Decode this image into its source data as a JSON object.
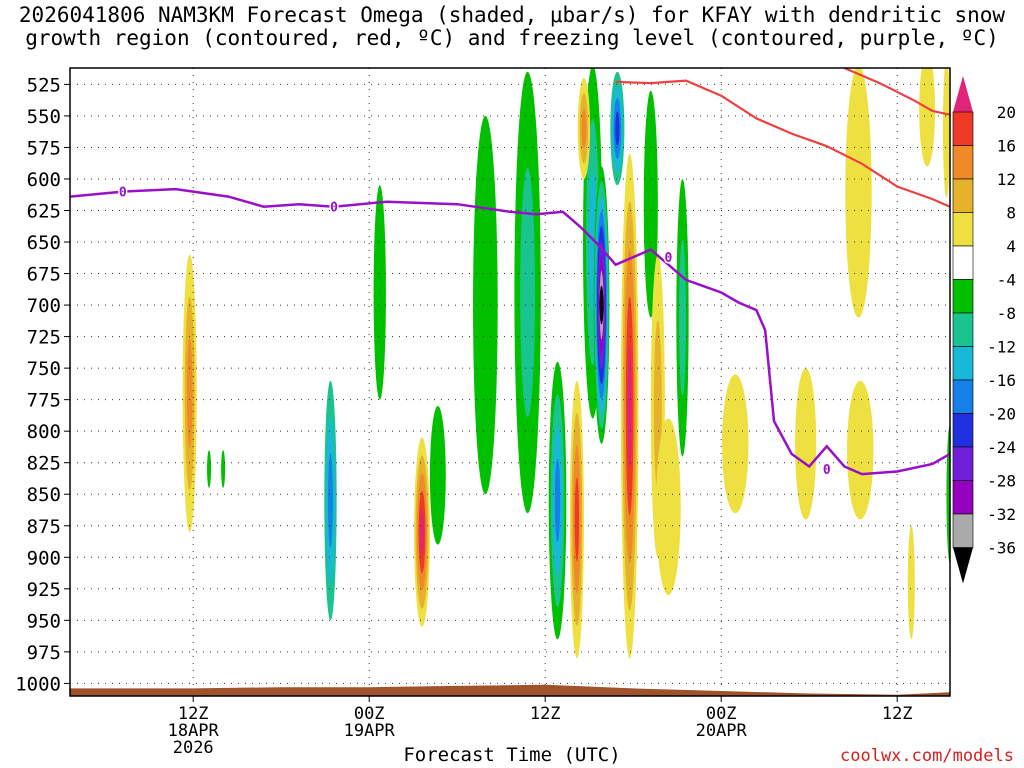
{
  "chart_data": {
    "type": "heatmap",
    "title_line1": "2026041806 NAM3KM Forecast Omega (shaded, μbar/s) for KFAY with dendritic snow",
    "title_line2": "growth region (contoured, red, ºC) and freezing level (contoured, purple, ºC)",
    "xlabel": "Forecast Time (UTC)",
    "credit": "coolwx.com/models",
    "x_range_hours": [
      -7,
      43
    ],
    "y_range_mb": [
      512,
      1010
    ],
    "y_ticks": [
      525,
      550,
      575,
      600,
      625,
      650,
      675,
      700,
      725,
      750,
      775,
      800,
      825,
      850,
      875,
      900,
      925,
      950,
      975,
      1000
    ],
    "x_ticks": [
      {
        "hour": 0,
        "line1": "12Z",
        "line2": "18APR",
        "line3": "2026"
      },
      {
        "hour": 10,
        "line1": "00Z",
        "line2": "19APR",
        "line3": ""
      },
      {
        "hour": 20,
        "line1": "12Z",
        "line2": "",
        "line3": ""
      },
      {
        "hour": 30,
        "line1": "00Z",
        "line2": "20APR",
        "line3": ""
      },
      {
        "hour": 40,
        "line1": "12Z",
        "line2": "",
        "line3": ""
      }
    ],
    "colorbar": {
      "labels": [
        "20",
        "16",
        "12",
        "8",
        "4",
        "-4",
        "-8",
        "-12",
        "-16",
        "-20",
        "-24",
        "-28",
        "-32",
        "-36"
      ],
      "colors": [
        "#e0247a",
        "#ee3a26",
        "#ee8a28",
        "#e6b22c",
        "#ede040",
        "#ffffff",
        "#00c000",
        "#19c48e",
        "#18b8d8",
        "#1480e8",
        "#2030e0",
        "#7020d8",
        "#9600c0",
        "#aaaaaa",
        "#000000"
      ]
    },
    "freezing_level": {
      "label": "0",
      "color": "#9a10c8",
      "hours": [
        -7,
        -4,
        -1,
        2,
        4,
        6,
        8,
        11,
        15,
        18,
        19.5,
        21,
        22,
        23,
        24,
        25,
        26,
        27,
        28,
        29,
        30,
        31,
        32,
        32.5,
        33,
        34,
        35,
        36,
        37,
        38,
        40,
        42,
        43
      ],
      "mb": [
        614,
        610,
        608,
        614,
        622,
        620,
        622,
        618,
        620,
        626,
        628,
        626,
        638,
        652,
        668,
        662,
        656,
        668,
        680,
        685,
        690,
        698,
        704,
        720,
        792,
        818,
        828,
        812,
        828,
        834,
        832,
        826,
        818
      ]
    },
    "dgz_contours": {
      "color": "#ee4040",
      "lines": [
        {
          "hours": [
            24,
            26,
            28,
            30,
            32,
            34,
            36,
            38,
            40,
            42,
            43
          ],
          "mb": [
            523,
            524,
            522,
            534,
            552,
            564,
            574,
            588,
            606,
            616,
            622
          ]
        },
        {
          "hours": [
            37,
            39,
            41,
            42,
            43
          ],
          "mb": [
            512,
            524,
            538,
            546,
            549
          ]
        }
      ]
    },
    "omega_blobs": [
      {
        "hour": -0.2,
        "mb": 770,
        "w": 0.8,
        "h": 220,
        "levels": [
          4,
          8,
          12
        ]
      },
      {
        "hour": 0.9,
        "mb": 830,
        "w": 0.2,
        "h": 30,
        "levels": [
          -4
        ]
      },
      {
        "hour": 1.7,
        "mb": 830,
        "w": 0.2,
        "h": 30,
        "levels": [
          -4
        ]
      },
      {
        "hour": 7.8,
        "mb": 855,
        "w": 0.7,
        "h": 190,
        "levels": [
          -8,
          -12,
          -16
        ]
      },
      {
        "hour": 10.6,
        "mb": 690,
        "w": 0.7,
        "h": 170,
        "levels": [
          -4
        ]
      },
      {
        "hour": 13,
        "mb": 880,
        "w": 0.9,
        "h": 150,
        "levels": [
          4,
          8,
          12,
          16,
          20
        ]
      },
      {
        "hour": 13.9,
        "mb": 835,
        "w": 0.9,
        "h": 110,
        "levels": [
          -4
        ]
      },
      {
        "hour": 16.6,
        "mb": 700,
        "w": 1.4,
        "h": 300,
        "levels": [
          -4
        ]
      },
      {
        "hour": 19,
        "mb": 690,
        "w": 1.5,
        "h": 350,
        "levels": [
          -4,
          -8
        ]
      },
      {
        "hour": 20.7,
        "mb": 855,
        "w": 1.0,
        "h": 220,
        "levels": [
          -4,
          -8,
          -12,
          -16
        ]
      },
      {
        "hour": 21.8,
        "mb": 870,
        "w": 0.8,
        "h": 220,
        "levels": [
          4,
          8,
          12,
          16
        ]
      },
      {
        "hour": 22.7,
        "mb": 650,
        "w": 1.1,
        "h": 280,
        "levels": [
          -4,
          -8,
          -12
        ]
      },
      {
        "hour": 23.2,
        "mb": 700,
        "w": 0.9,
        "h": 220,
        "levels": [
          -4,
          -8,
          -12,
          -16,
          -20,
          -24,
          -28,
          -32,
          -36
        ]
      },
      {
        "hour": 22.2,
        "mb": 560,
        "w": 0.7,
        "h": 80,
        "levels": [
          4,
          8,
          12
        ]
      },
      {
        "hour": 24.1,
        "mb": 560,
        "w": 0.8,
        "h": 90,
        "levels": [
          -8,
          -12,
          -16,
          -20
        ]
      },
      {
        "hour": 24.8,
        "mb": 780,
        "w": 1.0,
        "h": 400,
        "levels": [
          4,
          8,
          12,
          16,
          20
        ]
      },
      {
        "hour": 26.0,
        "mb": 620,
        "w": 0.8,
        "h": 180,
        "levels": [
          -4
        ]
      },
      {
        "hour": 26.4,
        "mb": 780,
        "w": 0.8,
        "h": 240,
        "levels": [
          4,
          8
        ]
      },
      {
        "hour": 27.8,
        "mb": 710,
        "w": 0.7,
        "h": 220,
        "levels": [
          -4,
          -8
        ]
      },
      {
        "hour": 27.0,
        "mb": 860,
        "w": 1.4,
        "h": 140,
        "levels": [
          4
        ]
      },
      {
        "hour": 30.8,
        "mb": 810,
        "w": 1.5,
        "h": 110,
        "levels": [
          4
        ]
      },
      {
        "hour": 34.8,
        "mb": 810,
        "w": 1.2,
        "h": 120,
        "levels": [
          4
        ]
      },
      {
        "hour": 37.9,
        "mb": 815,
        "w": 1.5,
        "h": 110,
        "levels": [
          4
        ]
      },
      {
        "hour": 40.8,
        "mb": 920,
        "w": 0.4,
        "h": 90,
        "levels": [
          4
        ]
      },
      {
        "hour": 37.8,
        "mb": 610,
        "w": 1.5,
        "h": 200,
        "levels": [
          4
        ]
      },
      {
        "hour": 41.7,
        "mb": 545,
        "w": 0.9,
        "h": 90,
        "levels": [
          4
        ]
      },
      {
        "hour": 42.8,
        "mb": 560,
        "w": 0.4,
        "h": 110,
        "levels": [
          4
        ]
      },
      {
        "hour": 43,
        "mb": 850,
        "w": 0.4,
        "h": 110,
        "levels": [
          -4
        ]
      }
    ],
    "terrain": {
      "color": "#a0522d",
      "hours": [
        -7,
        0,
        5,
        10,
        15,
        20,
        25,
        30,
        35,
        40,
        43
      ],
      "mb": [
        1004,
        1004,
        1003,
        1003,
        1002,
        1001,
        1004,
        1006,
        1008,
        1009,
        1007
      ]
    }
  }
}
